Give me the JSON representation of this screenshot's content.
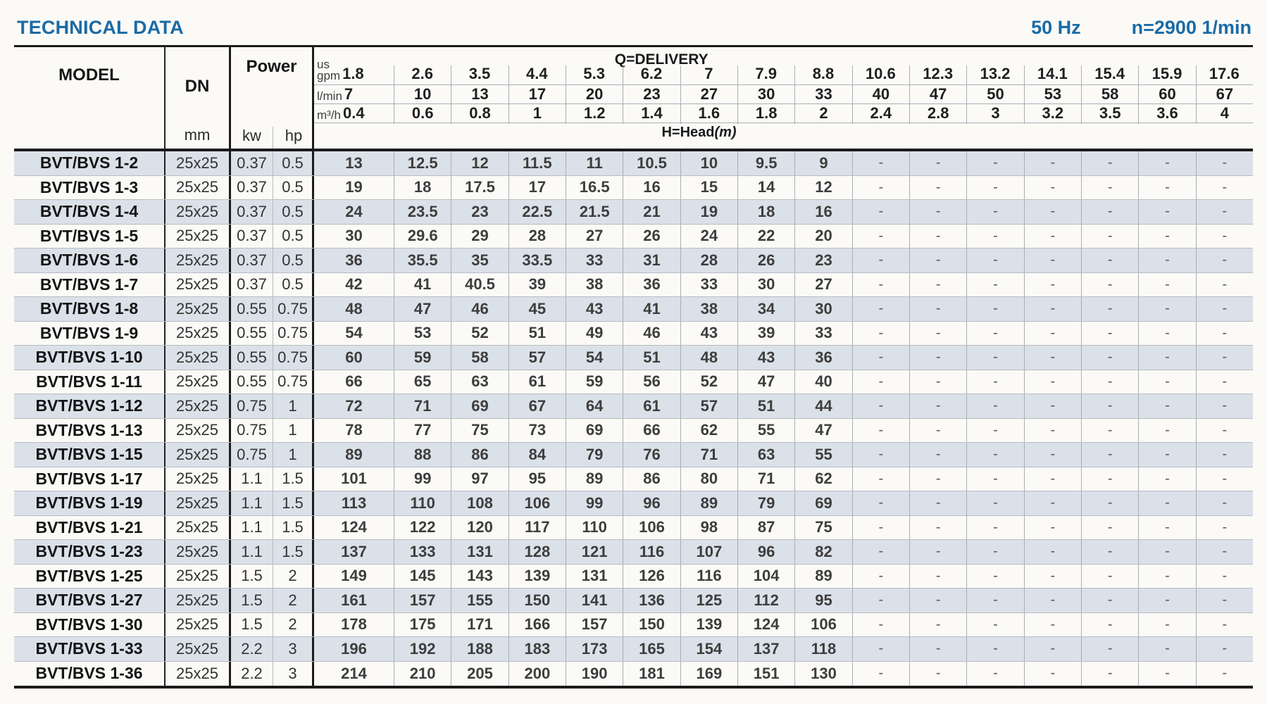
{
  "page": {
    "title": "TECHNICAL DATA",
    "frequency": "50 Hz",
    "speed": "n=2900 1/min"
  },
  "table": {
    "headers": {
      "model": "MODEL",
      "dn": "DN",
      "dn_unit": "mm",
      "power": "Power",
      "power_kw": "kw",
      "power_hp": "hp",
      "delivery_title": "Q=DELIVERY",
      "head_title": "H=Head",
      "head_title_unit": "(m)",
      "unit_rows": [
        {
          "id": "us-gpm",
          "label_lines": [
            "us",
            "gpm"
          ],
          "values": [
            1.8,
            2.6,
            3.5,
            4.4,
            5.3,
            6.2,
            7,
            7.9,
            8.8,
            10.6,
            12.3,
            13.2,
            14.1,
            15.4,
            15.9,
            17.6
          ]
        },
        {
          "id": "l-min",
          "label_lines": [
            "l/min"
          ],
          "values": [
            7,
            10,
            13,
            17,
            20,
            23,
            27,
            30,
            33,
            40,
            47,
            50,
            53,
            58,
            60,
            67
          ]
        },
        {
          "id": "m3-h",
          "label_lines": [
            "m³/h"
          ],
          "values": [
            0.4,
            0.6,
            0.8,
            1,
            1.2,
            1.4,
            1.6,
            1.8,
            2,
            2.4,
            2.8,
            3,
            3.2,
            3.5,
            3.6,
            4
          ]
        }
      ]
    },
    "rows": [
      {
        "model": "BVT/BVS 1-2",
        "dn": "25x25",
        "kw": "0.37",
        "hp": "0.5",
        "head": [
          13,
          12.5,
          12,
          11.5,
          11,
          10.5,
          10,
          9.5,
          9,
          "-",
          "-",
          "-",
          "-",
          "-",
          "-",
          "-"
        ]
      },
      {
        "model": "BVT/BVS 1-3",
        "dn": "25x25",
        "kw": "0.37",
        "hp": "0.5",
        "head": [
          19,
          18,
          17.5,
          17,
          16.5,
          16,
          15,
          14,
          12,
          "-",
          "-",
          "-",
          "-",
          "-",
          "-",
          "-"
        ]
      },
      {
        "model": "BVT/BVS 1-4",
        "dn": "25x25",
        "kw": "0.37",
        "hp": "0.5",
        "head": [
          24,
          23.5,
          23,
          22.5,
          21.5,
          21,
          19,
          18,
          16,
          "-",
          "-",
          "-",
          "-",
          "-",
          "-",
          "-"
        ]
      },
      {
        "model": "BVT/BVS 1-5",
        "dn": "25x25",
        "kw": "0.37",
        "hp": "0.5",
        "head": [
          30,
          29.6,
          29,
          28,
          27,
          26,
          24,
          22,
          20,
          "-",
          "-",
          "-",
          "-",
          "-",
          "-",
          "-"
        ]
      },
      {
        "model": "BVT/BVS 1-6",
        "dn": "25x25",
        "kw": "0.37",
        "hp": "0.5",
        "head": [
          36,
          35.5,
          35,
          33.5,
          33,
          31,
          28,
          26,
          23,
          "-",
          "-",
          "-",
          "-",
          "-",
          "-",
          "-"
        ]
      },
      {
        "model": "BVT/BVS 1-7",
        "dn": "25x25",
        "kw": "0.37",
        "hp": "0.5",
        "head": [
          42,
          41,
          40.5,
          39,
          38,
          36,
          33,
          30,
          27,
          "-",
          "-",
          "-",
          "-",
          "-",
          "-",
          "-"
        ]
      },
      {
        "model": "BVT/BVS 1-8",
        "dn": "25x25",
        "kw": "0.55",
        "hp": "0.75",
        "head": [
          48,
          47,
          46,
          45,
          43,
          41,
          38,
          34,
          30,
          "-",
          "-",
          "-",
          "-",
          "-",
          "-",
          "-"
        ]
      },
      {
        "model": "BVT/BVS 1-9",
        "dn": "25x25",
        "kw": "0.55",
        "hp": "0.75",
        "head": [
          54,
          53,
          52,
          51,
          49,
          46,
          43,
          39,
          33,
          "-",
          "-",
          "-",
          "-",
          "-",
          "-",
          "-"
        ]
      },
      {
        "model": "BVT/BVS 1-10",
        "dn": "25x25",
        "kw": "0.55",
        "hp": "0.75",
        "head": [
          60,
          59,
          58,
          57,
          54,
          51,
          48,
          43,
          36,
          "-",
          "-",
          "-",
          "-",
          "-",
          "-",
          "-"
        ]
      },
      {
        "model": "BVT/BVS 1-11",
        "dn": "25x25",
        "kw": "0.55",
        "hp": "0.75",
        "head": [
          66,
          65,
          63,
          61,
          59,
          56,
          52,
          47,
          40,
          "-",
          "-",
          "-",
          "-",
          "-",
          "-",
          "-"
        ]
      },
      {
        "model": "BVT/BVS 1-12",
        "dn": "25x25",
        "kw": "0.75",
        "hp": "1",
        "head": [
          72,
          71,
          69,
          67,
          64,
          61,
          57,
          51,
          44,
          "-",
          "-",
          "-",
          "-",
          "-",
          "-",
          "-"
        ]
      },
      {
        "model": "BVT/BVS 1-13",
        "dn": "25x25",
        "kw": "0.75",
        "hp": "1",
        "head": [
          78,
          77,
          75,
          73,
          69,
          66,
          62,
          55,
          47,
          "-",
          "-",
          "-",
          "-",
          "-",
          "-",
          "-"
        ]
      },
      {
        "model": "BVT/BVS 1-15",
        "dn": "25x25",
        "kw": "0.75",
        "hp": "1",
        "head": [
          89,
          88,
          86,
          84,
          79,
          76,
          71,
          63,
          55,
          "-",
          "-",
          "-",
          "-",
          "-",
          "-",
          "-"
        ]
      },
      {
        "model": "BVT/BVS 1-17",
        "dn": "25x25",
        "kw": "1.1",
        "hp": "1.5",
        "head": [
          101,
          99,
          97,
          95,
          89,
          86,
          80,
          71,
          62,
          "-",
          "-",
          "-",
          "-",
          "-",
          "-",
          "-"
        ]
      },
      {
        "model": "BVT/BVS 1-19",
        "dn": "25x25",
        "kw": "1.1",
        "hp": "1.5",
        "head": [
          113,
          110,
          108,
          106,
          99,
          96,
          89,
          79,
          69,
          "-",
          "-",
          "-",
          "-",
          "-",
          "-",
          "-"
        ]
      },
      {
        "model": "BVT/BVS 1-21",
        "dn": "25x25",
        "kw": "1.1",
        "hp": "1.5",
        "head": [
          124,
          122,
          120,
          117,
          110,
          106,
          98,
          87,
          75,
          "-",
          "-",
          "-",
          "-",
          "-",
          "-",
          "-"
        ]
      },
      {
        "model": "BVT/BVS 1-23",
        "dn": "25x25",
        "kw": "1.1",
        "hp": "1.5",
        "head": [
          137,
          133,
          131,
          128,
          121,
          116,
          107,
          96,
          82,
          "-",
          "-",
          "-",
          "-",
          "-",
          "-",
          "-"
        ]
      },
      {
        "model": "BVT/BVS 1-25",
        "dn": "25x25",
        "kw": "1.5",
        "hp": "2",
        "head": [
          149,
          145,
          143,
          139,
          131,
          126,
          116,
          104,
          89,
          "-",
          "-",
          "-",
          "-",
          "-",
          "-",
          "-"
        ]
      },
      {
        "model": "BVT/BVS 1-27",
        "dn": "25x25",
        "kw": "1.5",
        "hp": "2",
        "head": [
          161,
          157,
          155,
          150,
          141,
          136,
          125,
          112,
          95,
          "-",
          "-",
          "-",
          "-",
          "-",
          "-",
          "-"
        ]
      },
      {
        "model": "BVT/BVS 1-30",
        "dn": "25x25",
        "kw": "1.5",
        "hp": "2",
        "head": [
          178,
          175,
          171,
          166,
          157,
          150,
          139,
          124,
          106,
          "-",
          "-",
          "-",
          "-",
          "-",
          "-",
          "-"
        ]
      },
      {
        "model": "BVT/BVS 1-33",
        "dn": "25x25",
        "kw": "2.2",
        "hp": "3",
        "head": [
          196,
          192,
          188,
          183,
          173,
          165,
          154,
          137,
          118,
          "-",
          "-",
          "-",
          "-",
          "-",
          "-",
          "-"
        ]
      },
      {
        "model": "BVT/BVS 1-36",
        "dn": "25x25",
        "kw": "2.2",
        "hp": "3",
        "head": [
          214,
          210,
          205,
          200,
          190,
          181,
          169,
          151,
          130,
          "-",
          "-",
          "-",
          "-",
          "-",
          "-",
          "-"
        ]
      }
    ]
  }
}
